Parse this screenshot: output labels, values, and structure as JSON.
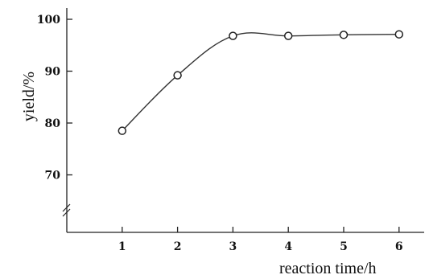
{
  "chart_data": {
    "type": "line",
    "title": "",
    "xlabel": "reaction time/h",
    "ylabel": "yield/%",
    "x": [
      1,
      2,
      3,
      4,
      5,
      6
    ],
    "x_ticks": [
      1,
      2,
      3,
      4,
      5,
      6
    ],
    "y_ticks": [
      70,
      80,
      90,
      100
    ],
    "xlim": [
      0,
      6.5
    ],
    "ylim": [
      65,
      102
    ],
    "y_axis_break": true,
    "grid": false,
    "series": [
      {
        "values": [
          78.5,
          89.2,
          96.8,
          96.8,
          97.0,
          97.1
        ],
        "marker": "open-circle",
        "color": "#222222"
      }
    ]
  }
}
